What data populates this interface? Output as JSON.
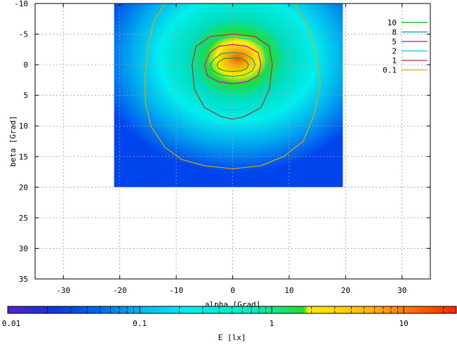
{
  "chart_data": {
    "type": "heatmap",
    "xlabel": "alpha [Grad]",
    "ylabel": "beta [Grad]",
    "xlim": [
      -35,
      35
    ],
    "ylim": [
      35,
      -10
    ],
    "y_reversed": true,
    "x_ticks": [
      -30,
      -20,
      -10,
      0,
      10,
      20,
      30
    ],
    "y_ticks": [
      -10,
      -5,
      0,
      5,
      10,
      15,
      20,
      25,
      30,
      35
    ],
    "grid": true,
    "data_extent": {
      "x": [
        -21,
        19.5
      ],
      "y": [
        -10,
        20
      ]
    },
    "peak": {
      "alpha": 0,
      "beta": 0,
      "value": 25
    },
    "legend_position": "top-right",
    "contours": [
      {
        "level": "10",
        "color": "#00aa00",
        "polygon": [
          [
            -2.5,
            -0.5
          ],
          [
            -1.5,
            -1
          ],
          [
            0,
            -1.1
          ],
          [
            1.5,
            -1
          ],
          [
            2.5,
            -0.5
          ],
          [
            2.8,
            0
          ],
          [
            2.5,
            0.6
          ],
          [
            1.5,
            1
          ],
          [
            0,
            1.1
          ],
          [
            -1.5,
            1
          ],
          [
            -2.5,
            0.6
          ],
          [
            -2.8,
            0
          ]
        ]
      },
      {
        "level": "8",
        "color": "#00a0a0",
        "polygon": [
          [
            -3.2,
            -1
          ],
          [
            -2,
            -1.8
          ],
          [
            0,
            -2
          ],
          [
            2,
            -1.8
          ],
          [
            3.5,
            -1
          ],
          [
            4,
            0
          ],
          [
            3.5,
            1
          ],
          [
            2,
            1.7
          ],
          [
            0,
            1.9
          ],
          [
            -2,
            1.7
          ],
          [
            -3.5,
            1
          ],
          [
            -4,
            0
          ]
        ]
      },
      {
        "level": "5",
        "color": "#cc00cc",
        "polygon": [
          [
            -4,
            -2
          ],
          [
            -2.5,
            -3
          ],
          [
            0,
            -3.3
          ],
          [
            2.5,
            -3
          ],
          [
            4.5,
            -2
          ],
          [
            5,
            0
          ],
          [
            4.5,
            1.8
          ],
          [
            2.5,
            2.8
          ],
          [
            0,
            3.1
          ],
          [
            -2.5,
            2.8
          ],
          [
            -4.5,
            1.8
          ],
          [
            -5,
            0
          ]
        ]
      },
      {
        "level": "2",
        "color": "#00ccee",
        "polygon": [
          [
            -5,
            -3
          ],
          [
            -3,
            -4.2
          ],
          [
            0,
            -4.5
          ],
          [
            3,
            -4.2
          ],
          [
            5.5,
            -3
          ],
          [
            6,
            0
          ],
          [
            5.5,
            3
          ],
          [
            4,
            6
          ],
          [
            2,
            7.2
          ],
          [
            0,
            7.5
          ],
          [
            -2,
            7.2
          ],
          [
            -4,
            6
          ],
          [
            -5.5,
            3
          ],
          [
            -6,
            0
          ]
        ]
      },
      {
        "level": "1",
        "color": "#b03030",
        "polygon": [
          [
            -6.5,
            -3
          ],
          [
            -4,
            -4.6
          ],
          [
            0,
            -5
          ],
          [
            4,
            -4.6
          ],
          [
            6.5,
            -3
          ],
          [
            7,
            0
          ],
          [
            6.5,
            4
          ],
          [
            5,
            7
          ],
          [
            2,
            8.5
          ],
          [
            0,
            8.9
          ],
          [
            -2,
            8.5
          ],
          [
            -5,
            7
          ],
          [
            -6.8,
            4
          ],
          [
            -7.2,
            0
          ]
        ]
      },
      {
        "level": "0.1",
        "color": "#ddaa00",
        "polygon": [
          [
            -12,
            -10
          ],
          [
            -14,
            -7
          ],
          [
            -15,
            -3
          ],
          [
            -15.5,
            2
          ],
          [
            -15.5,
            6
          ],
          [
            -14.5,
            10
          ],
          [
            -12,
            13.5
          ],
          [
            -9,
            15.5
          ],
          [
            -5,
            16.5
          ],
          [
            0,
            17
          ],
          [
            5,
            16.5
          ],
          [
            9,
            15
          ],
          [
            12.5,
            12.5
          ],
          [
            14.5,
            8
          ],
          [
            15.5,
            3
          ],
          [
            14.5,
            -3
          ],
          [
            13,
            -7
          ],
          [
            11,
            -10
          ]
        ]
      }
    ],
    "colorbar": {
      "scale": "log",
      "range": [
        0.01,
        25
      ],
      "tick_labels": [
        "0.01",
        "0.1",
        "1",
        "10"
      ],
      "tick_values": [
        0.01,
        0.1,
        1,
        10
      ],
      "label": "E [lx]"
    }
  }
}
